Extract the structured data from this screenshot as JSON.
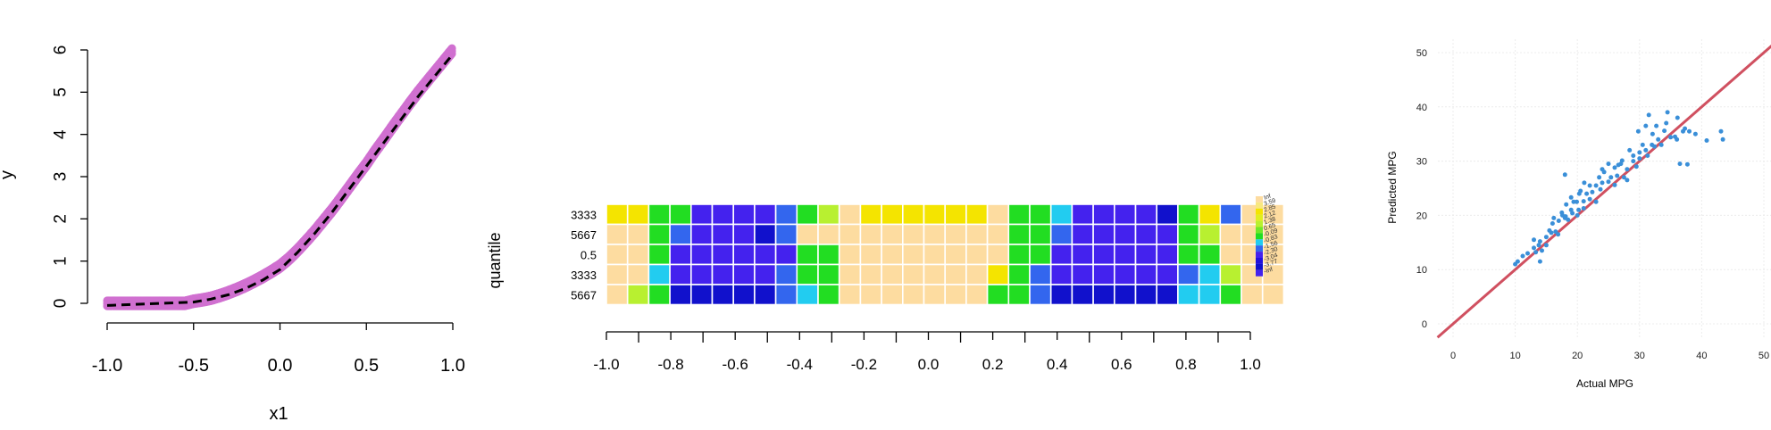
{
  "chart_data": [
    {
      "type": "scatter",
      "xlabel": "x1",
      "ylabel": "y",
      "xlim": [
        -1.0,
        1.0
      ],
      "ylim": [
        0,
        6
      ],
      "x_ticks": [
        "-1.0",
        "-0.5",
        "0.0",
        "0.5",
        "1.0"
      ],
      "y_ticks": [
        "0",
        "1",
        "2",
        "3",
        "4",
        "5",
        "6"
      ],
      "point_color": "#d070d0",
      "line_color": "#000000",
      "series": [
        {
          "kind": "points",
          "description_of_shape": "noisy around y = 3*max(x1,0)^2 ... dense band",
          "x": [
            -1.0,
            -0.95,
            -0.9,
            -0.85,
            -0.8,
            -0.75,
            -0.7,
            -0.65,
            -0.6,
            -0.55,
            -0.5,
            -0.45,
            -0.4,
            -0.35,
            -0.3,
            -0.25,
            -0.2,
            -0.15,
            -0.1,
            -0.05,
            0.0,
            0.05,
            0.1,
            0.15,
            0.2,
            0.25,
            0.3,
            0.35,
            0.4,
            0.45,
            0.5,
            0.55,
            0.6,
            0.65,
            0.7,
            0.75,
            0.8,
            0.85,
            0.9,
            0.95,
            1.0
          ],
          "y": [
            0.0,
            0.0,
            0.0,
            0.0,
            0.0,
            0.0,
            0.0,
            0.0,
            0.0,
            0.0,
            0.05,
            0.08,
            0.12,
            0.18,
            0.25,
            0.33,
            0.42,
            0.52,
            0.63,
            0.75,
            0.88,
            1.05,
            1.25,
            1.47,
            1.7,
            1.95,
            2.2,
            2.47,
            2.75,
            3.03,
            3.3,
            3.6,
            3.88,
            4.17,
            4.45,
            4.73,
            5.0,
            5.25,
            5.5,
            5.75,
            6.0
          ]
        },
        {
          "kind": "dashed-line",
          "x": [
            -1.0,
            -0.5,
            -0.4,
            -0.3,
            -0.2,
            -0.1,
            0.0,
            0.1,
            0.2,
            0.3,
            0.4,
            0.5,
            0.6,
            0.7,
            0.8,
            0.9,
            1.0
          ],
          "y": [
            -0.05,
            0.03,
            0.1,
            0.2,
            0.35,
            0.55,
            0.8,
            1.2,
            1.65,
            2.15,
            2.7,
            3.25,
            3.8,
            4.35,
            4.9,
            5.4,
            5.9
          ]
        }
      ]
    },
    {
      "type": "heatmap",
      "ylabel": "quantile",
      "row_labels": [
        "3333",
        "5667",
        "0.5",
        "3333",
        "5667"
      ],
      "xlim": [
        -1.0,
        1.0
      ],
      "x_ticks": [
        "-1.0",
        "-0.8",
        "-0.6",
        "-0.4",
        "-0.2",
        "0.0",
        "0.2",
        "0.4",
        "0.6",
        "0.8",
        "1.0"
      ],
      "legend_labels": [
        "Inf",
        "3.59",
        "2.85",
        "2.12",
        "1.38",
        "0.65",
        "-0.09",
        "-0.83",
        "-1.56",
        "-2.30",
        "-3.04",
        "-3.77",
        "-Inf"
      ],
      "palette": {
        "beige": "#fddca0",
        "yellow": "#f4e400",
        "lime": "#b8f030",
        "green": "#22dd22",
        "cyan": "#22ccf0",
        "blue": "#3366ee",
        "indigo": "#4422ee",
        "navy": "#1111cc"
      },
      "cells": [
        [
          "yellow",
          "yellow",
          "green",
          "green",
          "indigo",
          "indigo",
          "indigo",
          "indigo",
          "blue",
          "green",
          "lime",
          "beige",
          "yellow",
          "yellow",
          "yellow",
          "yellow",
          "yellow",
          "yellow",
          "beige",
          "green",
          "green",
          "cyan",
          "indigo",
          "indigo",
          "indigo",
          "indigo",
          "navy",
          "green",
          "yellow",
          "blue",
          "beige",
          "beige"
        ],
        [
          "beige",
          "beige",
          "green",
          "blue",
          "indigo",
          "indigo",
          "indigo",
          "navy",
          "blue",
          "beige",
          "beige",
          "beige",
          "beige",
          "beige",
          "beige",
          "beige",
          "beige",
          "beige",
          "beige",
          "green",
          "green",
          "blue",
          "indigo",
          "indigo",
          "indigo",
          "indigo",
          "indigo",
          "green",
          "lime",
          "beige",
          "beige",
          "beige"
        ],
        [
          "beige",
          "beige",
          "green",
          "indigo",
          "indigo",
          "indigo",
          "indigo",
          "indigo",
          "indigo",
          "green",
          "green",
          "beige",
          "beige",
          "beige",
          "beige",
          "beige",
          "beige",
          "beige",
          "beige",
          "green",
          "green",
          "indigo",
          "indigo",
          "indigo",
          "indigo",
          "indigo",
          "indigo",
          "green",
          "green",
          "beige",
          "beige",
          "beige"
        ],
        [
          "beige",
          "beige",
          "cyan",
          "indigo",
          "indigo",
          "indigo",
          "indigo",
          "indigo",
          "blue",
          "green",
          "green",
          "beige",
          "beige",
          "beige",
          "beige",
          "beige",
          "beige",
          "beige",
          "yellow",
          "green",
          "blue",
          "indigo",
          "indigo",
          "indigo",
          "indigo",
          "indigo",
          "indigo",
          "blue",
          "cyan",
          "lime",
          "beige",
          "beige"
        ],
        [
          "beige",
          "lime",
          "green",
          "navy",
          "navy",
          "navy",
          "navy",
          "navy",
          "blue",
          "cyan",
          "green",
          "beige",
          "beige",
          "beige",
          "beige",
          "beige",
          "beige",
          "beige",
          "green",
          "green",
          "blue",
          "navy",
          "navy",
          "navy",
          "navy",
          "navy",
          "navy",
          "cyan",
          "cyan",
          "green",
          "beige",
          "beige"
        ]
      ]
    },
    {
      "type": "scatter",
      "xlabel": "Actual MPG",
      "ylabel": "Predicted MPG",
      "xlim": [
        0,
        50
      ],
      "ylim": [
        0,
        50
      ],
      "x_ticks": [
        "0",
        "10",
        "20",
        "30",
        "40",
        "50"
      ],
      "y_ticks": [
        "0",
        "10",
        "20",
        "30",
        "40",
        "50"
      ],
      "point_color": "#3a8fd8",
      "line_color": "#d05060",
      "reference_line": {
        "from": [
          0,
          0
        ],
        "to": [
          52,
          52
        ]
      },
      "x": [
        10,
        10.4,
        11.2,
        12,
        13,
        13,
        13.3,
        13.8,
        14,
        14,
        14.3,
        15,
        15,
        15.5,
        15.8,
        16,
        16.2,
        16.5,
        16.9,
        17,
        17.5,
        17.6,
        18,
        18,
        18.1,
        18.2,
        18.5,
        19,
        19,
        19.2,
        19.4,
        19.9,
        20,
        20.2,
        20.3,
        20.5,
        21,
        21,
        21.1,
        21.5,
        22,
        22,
        22.4,
        23,
        23,
        23.5,
        23.7,
        24,
        24,
        24.3,
        25,
        25,
        25.4,
        26,
        26,
        26.4,
        26.6,
        27,
        27.2,
        27.5,
        28,
        28,
        28.4,
        29,
        29,
        29.5,
        29.8,
        30,
        30,
        30.5,
        31,
        31,
        31.3,
        31.5,
        32,
        32.1,
        32.4,
        32.7,
        33,
        33.5,
        34,
        34.3,
        34.5,
        35,
        35.7,
        36,
        36.1,
        36.5,
        37,
        37.3,
        37.7,
        38,
        39,
        40.8,
        43.1,
        43.4
      ],
      "y": [
        11,
        11.5,
        12.5,
        13,
        14,
        15.5,
        13.2,
        14.5,
        15.2,
        11.5,
        13.5,
        16,
        14.5,
        17.2,
        16.8,
        18.5,
        19.5,
        17,
        16.5,
        19,
        20.5,
        20,
        27.5,
        19.5,
        19.8,
        22,
        19.2,
        21,
        23.3,
        20.4,
        22.5,
        22.5,
        20,
        21,
        24,
        24.5,
        22.6,
        21.3,
        26,
        24,
        25.5,
        23,
        24.3,
        25.5,
        22.5,
        27,
        24.8,
        26,
        28.5,
        28,
        26.2,
        29.5,
        27,
        28.8,
        25.6,
        27.3,
        29.3,
        29.5,
        30.1,
        27,
        26.5,
        28.5,
        32,
        30,
        31,
        29,
        35.5,
        30.5,
        31.6,
        33,
        32,
        36.5,
        31,
        38.5,
        33,
        35,
        32.7,
        36.5,
        34,
        33,
        35.6,
        37,
        39,
        34.4,
        34.5,
        34,
        38,
        29.5,
        35.5,
        36,
        29.4,
        35.5,
        35,
        33.8,
        35.5,
        34
      ]
    }
  ]
}
